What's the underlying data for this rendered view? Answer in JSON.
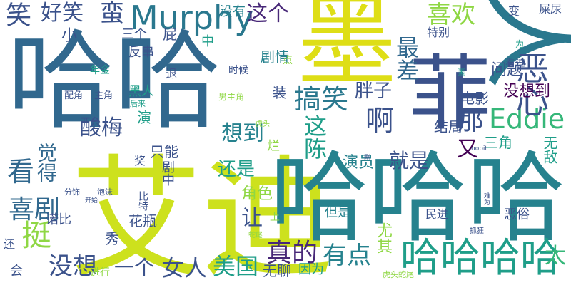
{
  "colors": {
    "background": "#ffffff",
    "palette": [
      "#440154",
      "#3b528b",
      "#21918c",
      "#35b779",
      "#8fd744",
      "#fde725",
      "#2a788e",
      "#1f9e89",
      "#482878",
      "#31688e",
      "#26828e",
      "#5ec962"
    ]
  },
  "words": [
    {
      "text": "哈哈",
      "color": "#31688e"
    },
    {
      "text": "艾迪",
      "color": "#cde11d"
    },
    {
      "text": "哈哈哈",
      "color": "#26828e"
    },
    {
      "text": "墨",
      "color": "#dede16"
    },
    {
      "text": "菲",
      "color": "#3b528b"
    },
    {
      "text": "人",
      "color": "#2a788e"
    },
    {
      "text": "哈哈哈哈",
      "color": "#1f9e89"
    },
    {
      "text": "Murphy",
      "color": "#2a788e"
    },
    {
      "text": "Eddie",
      "color": "#35b779"
    },
    {
      "text": "喜欢",
      "color": "#8fd744"
    },
    {
      "text": "最差",
      "color": "#31688e"
    },
    {
      "text": "恶心",
      "color": "#3b528b"
    },
    {
      "text": "搞笑",
      "color": "#2a788e"
    },
    {
      "text": "这个",
      "color": "#482878"
    },
    {
      "text": "好笑",
      "color": "#3b528b"
    },
    {
      "text": "蛮",
      "color": "#3b528b"
    },
    {
      "text": "笑",
      "color": "#3b528b"
    },
    {
      "text": "啊",
      "color": "#3b528b"
    },
    {
      "text": "那",
      "color": "#3b528b"
    },
    {
      "text": "这陈",
      "color": "#1f9e89"
    },
    {
      "text": "看",
      "color": "#31688e"
    },
    {
      "text": "觉得",
      "color": "#31688e"
    },
    {
      "text": "喜剧",
      "color": "#31688e"
    },
    {
      "text": "挺",
      "color": "#8fd744"
    },
    {
      "text": "真的",
      "color": "#482878"
    },
    {
      "text": "有点",
      "color": "#26828e"
    },
    {
      "text": "让",
      "color": "#3b528b"
    },
    {
      "text": "一个",
      "color": "#3b528b"
    },
    {
      "text": "女人",
      "color": "#3b528b"
    },
    {
      "text": "美国",
      "color": "#1f9e89"
    },
    {
      "text": "没想",
      "color": "#3b528b"
    },
    {
      "text": "太",
      "color": "#35b779"
    },
    {
      "text": "酸梅",
      "color": "#3b528b"
    },
    {
      "text": "想到",
      "color": "#26828e"
    },
    {
      "text": "胖子",
      "color": "#3b528b"
    },
    {
      "text": "就是",
      "color": "#3b528b"
    },
    {
      "text": "还是",
      "color": "#1f9e89"
    },
    {
      "text": "没想到",
      "color": "#440154"
    },
    {
      "text": "问题",
      "color": "#3b528b"
    },
    {
      "text": "电影",
      "color": "#3b528b"
    },
    {
      "text": "结局",
      "color": "#3b528b"
    },
    {
      "text": "剧情",
      "color": "#26828e"
    },
    {
      "text": "没有",
      "color": "#26828e"
    },
    {
      "text": "又",
      "color": "#440154"
    },
    {
      "text": "演员",
      "color": "#26828e"
    },
    {
      "text": "角色",
      "color": "#8fd744"
    },
    {
      "text": "小",
      "color": "#3b528b"
    },
    {
      "text": "三个",
      "color": "#3b528b"
    },
    {
      "text": "反串",
      "color": "#3b528b"
    },
    {
      "text": "屁",
      "color": "#3b528b"
    },
    {
      "text": "中",
      "color": "#1f9e89"
    },
    {
      "text": "装",
      "color": "#3b528b"
    },
    {
      "text": "黑人",
      "color": "#1f9e89"
    },
    {
      "text": "演",
      "color": "#1f9e89"
    },
    {
      "text": "只能",
      "color": "#3b528b"
    },
    {
      "text": "奖",
      "color": "#3b528b"
    },
    {
      "text": "烂",
      "color": "#8fd744"
    },
    {
      "text": "剧中",
      "color": "#3b528b"
    },
    {
      "text": "花瓶",
      "color": "#3b528b"
    },
    {
      "text": "比特",
      "color": "#3b528b"
    },
    {
      "text": "诺比",
      "color": "#3b528b"
    },
    {
      "text": "秀",
      "color": "#3b528b"
    },
    {
      "text": "无聊",
      "color": "#3b528b"
    },
    {
      "text": "因为",
      "color": "#1f9e89"
    },
    {
      "text": "但是",
      "color": "#26828e"
    },
    {
      "text": "民进",
      "color": "#3b528b"
    },
    {
      "text": "尤其",
      "color": "#8fd744"
    },
    {
      "text": "三角",
      "color": "#1f9e89"
    },
    {
      "text": "无敌",
      "color": "#1f9e89"
    },
    {
      "text": "恶俗",
      "color": "#3b528b"
    },
    {
      "text": "变",
      "color": "#3b528b"
    },
    {
      "text": "屎尿",
      "color": "#3b528b"
    },
    {
      "text": "特别",
      "color": "#3b528b"
    },
    {
      "text": "看过",
      "color": "#3b528b"
    },
    {
      "text": "为",
      "color": "#1f9e89"
    },
    {
      "text": "国",
      "color": "#1f9e89"
    },
    {
      "text": "点",
      "color": "#8fd744"
    },
    {
      "text": "退",
      "color": "#3b528b"
    },
    {
      "text": "时候",
      "color": "#3b528b"
    },
    {
      "text": "年金",
      "color": "#1f9e89"
    },
    {
      "text": "配角",
      "color": "#3b528b"
    },
    {
      "text": "主角",
      "color": "#3b528b"
    },
    {
      "text": "后来",
      "color": "#1f9e89"
    },
    {
      "text": "男主角",
      "color": "#8fd744"
    },
    {
      "text": "虎头",
      "color": "#8fd744"
    },
    {
      "text": "nobit",
      "color": "#3b528b"
    },
    {
      "text": "刚",
      "color": "#3b528b"
    },
    {
      "text": "分饰",
      "color": "#3b528b"
    },
    {
      "text": "泡沫",
      "color": "#3b528b"
    },
    {
      "text": "开始",
      "color": "#3b528b"
    },
    {
      "text": "难为",
      "color": "#3b528b"
    },
    {
      "text": "抓狂",
      "color": "#3b528b"
    },
    {
      "text": "蛇尾",
      "color": "#8fd744"
    },
    {
      "text": "上",
      "color": "#8fd744"
    },
    {
      "text": "还",
      "color": "#3b528b"
    },
    {
      "text": "会",
      "color": "#3b528b"
    },
    {
      "text": "进行",
      "color": "#8fd744"
    },
    {
      "text": "虎头蛇尾",
      "color": "#8fd744"
    }
  ]
}
